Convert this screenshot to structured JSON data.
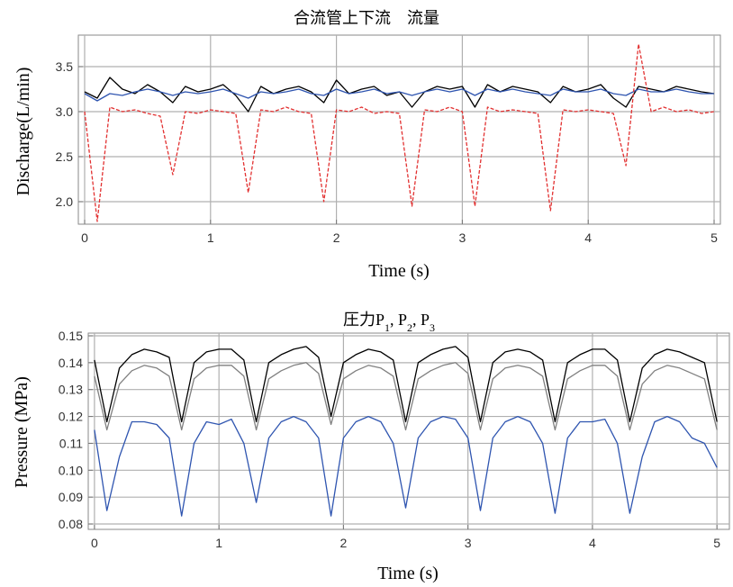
{
  "chart_data": [
    {
      "type": "line",
      "title": "合流管上下流　流量",
      "xlabel": "Time (s)",
      "ylabel": "Discharge(L/min)",
      "xlim": [
        -0.05,
        5.05
      ],
      "ylim": [
        1.75,
        3.85
      ],
      "xticks": [
        0,
        1,
        2,
        3,
        4,
        5
      ],
      "xtick_labels": [
        "0",
        "1",
        "2",
        "3",
        "4",
        "5"
      ],
      "yticks": [
        2.0,
        2.5,
        3.0,
        3.5
      ],
      "ytick_labels": [
        "2.0",
        "2.5",
        "3.0",
        "3.5"
      ],
      "grid": true,
      "x": [
        0,
        0.1,
        0.2,
        0.3,
        0.4,
        0.5,
        0.6,
        0.7,
        0.8,
        0.9,
        1.0,
        1.1,
        1.2,
        1.3,
        1.4,
        1.5,
        1.6,
        1.7,
        1.8,
        1.9,
        2.0,
        2.1,
        2.2,
        2.3,
        2.4,
        2.5,
        2.6,
        2.7,
        2.8,
        2.9,
        3.0,
        3.1,
        3.2,
        3.3,
        3.4,
        3.5,
        3.6,
        3.7,
        3.8,
        3.9,
        4.0,
        4.1,
        4.2,
        4.3,
        4.4,
        4.5,
        4.6,
        4.7,
        4.8,
        4.9,
        5.0
      ],
      "series": [
        {
          "style": "black-solid",
          "color": "#000000",
          "values": [
            3.22,
            3.15,
            3.38,
            3.25,
            3.2,
            3.3,
            3.22,
            3.1,
            3.28,
            3.22,
            3.25,
            3.3,
            3.18,
            3.0,
            3.28,
            3.2,
            3.25,
            3.28,
            3.22,
            3.1,
            3.35,
            3.2,
            3.25,
            3.28,
            3.18,
            3.22,
            3.05,
            3.22,
            3.28,
            3.25,
            3.28,
            3.05,
            3.3,
            3.22,
            3.28,
            3.25,
            3.22,
            3.1,
            3.28,
            3.22,
            3.25,
            3.3,
            3.15,
            3.05,
            3.28,
            3.25,
            3.22,
            3.28,
            3.25,
            3.22,
            3.2
          ]
        },
        {
          "style": "blue-solid",
          "color": "#2f55b0",
          "values": [
            3.2,
            3.12,
            3.2,
            3.18,
            3.22,
            3.25,
            3.22,
            3.18,
            3.22,
            3.2,
            3.22,
            3.25,
            3.2,
            3.15,
            3.22,
            3.2,
            3.22,
            3.25,
            3.2,
            3.18,
            3.25,
            3.2,
            3.22,
            3.25,
            3.2,
            3.22,
            3.18,
            3.22,
            3.25,
            3.22,
            3.25,
            3.18,
            3.25,
            3.22,
            3.25,
            3.22,
            3.2,
            3.18,
            3.25,
            3.22,
            3.22,
            3.25,
            3.2,
            3.18,
            3.25,
            3.22,
            3.22,
            3.25,
            3.22,
            3.2,
            3.2
          ]
        },
        {
          "style": "red-dashed",
          "color": "#e23030",
          "values": [
            3.0,
            1.78,
            3.05,
            3.0,
            3.02,
            2.98,
            2.95,
            2.3,
            3.0,
            2.98,
            3.02,
            3.0,
            2.98,
            2.1,
            3.02,
            3.0,
            3.05,
            3.0,
            2.98,
            2.0,
            3.02,
            3.0,
            3.05,
            2.98,
            3.0,
            2.98,
            1.95,
            3.02,
            3.0,
            3.05,
            3.0,
            1.95,
            3.05,
            3.0,
            3.02,
            3.0,
            2.98,
            1.9,
            3.02,
            3.0,
            3.02,
            3.0,
            2.98,
            2.4,
            3.75,
            3.0,
            3.05,
            3.0,
            3.02,
            2.98,
            3.0
          ]
        }
      ]
    },
    {
      "type": "line",
      "title": "圧力P1, P2, P3",
      "xlabel": "Time (s)",
      "ylabel": "Pressure (MPa)",
      "xlim": [
        -0.05,
        5.1
      ],
      "ylim": [
        0.078,
        0.151
      ],
      "xticks": [
        0,
        1,
        2,
        3,
        4,
        5
      ],
      "xtick_labels": [
        "0",
        "1",
        "2",
        "3",
        "4",
        "5"
      ],
      "yticks": [
        0.08,
        0.09,
        0.1,
        0.11,
        0.12,
        0.13,
        0.14,
        0.15
      ],
      "ytick_labels": [
        "0.08",
        "0.09",
        "0.10",
        "0.11",
        "0.12",
        "0.13",
        "0.14",
        "0.15"
      ],
      "grid": true,
      "x": [
        0,
        0.1,
        0.2,
        0.3,
        0.4,
        0.5,
        0.6,
        0.7,
        0.8,
        0.9,
        1.0,
        1.1,
        1.2,
        1.3,
        1.4,
        1.5,
        1.6,
        1.7,
        1.8,
        1.9,
        2.0,
        2.1,
        2.2,
        2.3,
        2.4,
        2.5,
        2.6,
        2.7,
        2.8,
        2.9,
        3.0,
        3.1,
        3.2,
        3.3,
        3.4,
        3.5,
        3.6,
        3.7,
        3.8,
        3.9,
        4.0,
        4.1,
        4.2,
        4.3,
        4.4,
        4.5,
        4.6,
        4.7,
        4.8,
        4.9,
        5.0
      ],
      "series": [
        {
          "name": "P1",
          "color": "#000000",
          "values": [
            0.141,
            0.118,
            0.138,
            0.143,
            0.145,
            0.144,
            0.142,
            0.118,
            0.14,
            0.144,
            0.145,
            0.145,
            0.141,
            0.118,
            0.14,
            0.143,
            0.145,
            0.146,
            0.142,
            0.12,
            0.14,
            0.143,
            0.145,
            0.144,
            0.141,
            0.118,
            0.14,
            0.143,
            0.145,
            0.146,
            0.142,
            0.118,
            0.14,
            0.144,
            0.145,
            0.144,
            0.141,
            0.118,
            0.14,
            0.143,
            0.145,
            0.145,
            0.141,
            0.118,
            0.138,
            0.143,
            0.145,
            0.144,
            0.142,
            0.14,
            0.118
          ]
        },
        {
          "name": "P2",
          "color": "#808080",
          "values": [
            0.135,
            0.115,
            0.132,
            0.137,
            0.139,
            0.138,
            0.135,
            0.115,
            0.134,
            0.138,
            0.139,
            0.139,
            0.135,
            0.115,
            0.134,
            0.137,
            0.139,
            0.14,
            0.136,
            0.117,
            0.134,
            0.137,
            0.139,
            0.138,
            0.135,
            0.115,
            0.134,
            0.137,
            0.139,
            0.14,
            0.136,
            0.115,
            0.134,
            0.138,
            0.139,
            0.138,
            0.135,
            0.115,
            0.134,
            0.137,
            0.139,
            0.139,
            0.135,
            0.115,
            0.132,
            0.137,
            0.139,
            0.138,
            0.136,
            0.134,
            0.115
          ]
        },
        {
          "name": "P3",
          "color": "#2f55b0",
          "values": [
            0.115,
            0.085,
            0.105,
            0.118,
            0.118,
            0.117,
            0.112,
            0.083,
            0.11,
            0.118,
            0.117,
            0.119,
            0.11,
            0.088,
            0.112,
            0.118,
            0.12,
            0.118,
            0.112,
            0.083,
            0.112,
            0.118,
            0.12,
            0.118,
            0.11,
            0.086,
            0.112,
            0.118,
            0.12,
            0.119,
            0.112,
            0.085,
            0.112,
            0.118,
            0.12,
            0.118,
            0.11,
            0.084,
            0.112,
            0.118,
            0.118,
            0.119,
            0.11,
            0.084,
            0.105,
            0.118,
            0.12,
            0.118,
            0.112,
            0.11,
            0.101
          ]
        }
      ]
    }
  ]
}
